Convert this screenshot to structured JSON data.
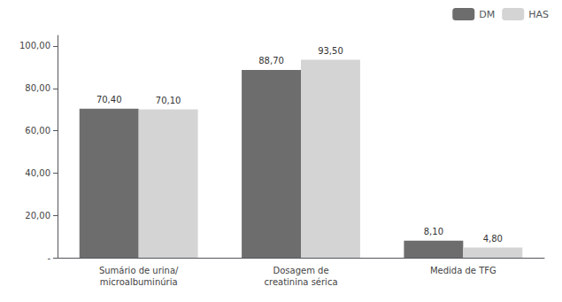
{
  "chart_data": {
    "type": "bar",
    "categories": [
      "Sumário de urina/\nmicroalbuminúria",
      "Dosagem de\ncreatinina sérica",
      "Medida de TFG"
    ],
    "series": [
      {
        "name": "DM",
        "color": "#6d6d6d",
        "values": [
          70.4,
          88.7,
          8.1
        ],
        "value_labels": [
          "70,40",
          "88,70",
          "8,10"
        ]
      },
      {
        "name": "HAS",
        "color": "#d4d4d4",
        "values": [
          70.1,
          93.5,
          4.8
        ],
        "value_labels": [
          "70,10",
          "93,50",
          "4,80"
        ]
      }
    ],
    "ylim": [
      0,
      105
    ],
    "yticks": [
      {
        "value": 0,
        "label": "-"
      },
      {
        "value": 20,
        "label": "20,00"
      },
      {
        "value": 40,
        "label": "40,00"
      },
      {
        "value": 60,
        "label": "60,00"
      },
      {
        "value": 80,
        "label": "80,00"
      },
      {
        "value": 100,
        "label": "100,00"
      }
    ],
    "data_labels": true,
    "grid": false,
    "legend": "upper right"
  }
}
